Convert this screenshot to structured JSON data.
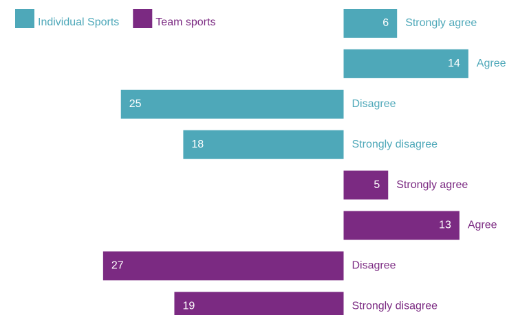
{
  "chart_data": {
    "type": "diverging-bar",
    "categories": [
      "Strongly agree",
      "Agree",
      "Disagree",
      "Strongly disagree"
    ],
    "series": [
      {
        "name": "Individual Sports",
        "color": "#4ea8b9",
        "values": [
          6,
          14,
          -25,
          -18
        ],
        "value_labels": [
          "6",
          "14",
          "25",
          "18"
        ]
      },
      {
        "name": "Team sports",
        "color": "#7b2a82",
        "values": [
          5,
          13,
          -27,
          -19
        ],
        "value_labels": [
          "5",
          "13",
          "27",
          "19"
        ]
      }
    ],
    "legend": "top-left"
  }
}
